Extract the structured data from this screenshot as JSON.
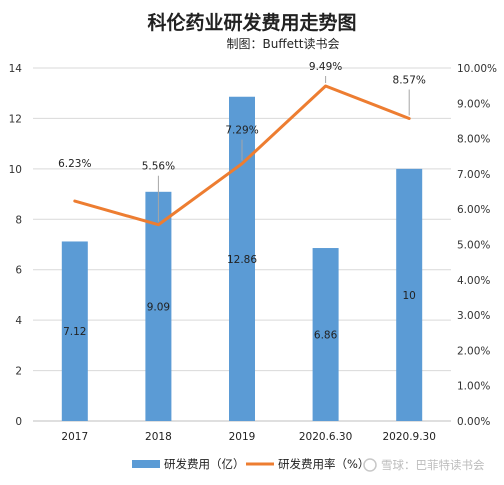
{
  "chart_data": {
    "type": "bar",
    "title": "科伦药业研发费用走势图",
    "subtitle": "制图：Buffett读书会",
    "categories": [
      "2017",
      "2018",
      "2019",
      "2020.6.30",
      "2020.9.30"
    ],
    "series": [
      {
        "name": "研发费用（亿）",
        "type": "bar",
        "axis": "left",
        "color": "#5b9bd5",
        "values": [
          7.12,
          9.09,
          12.86,
          6.86,
          10
        ],
        "labels": [
          "7.12",
          "9.09",
          "12.86",
          "6.86",
          "10"
        ]
      },
      {
        "name": "研发费用率（%）",
        "type": "line",
        "axis": "right",
        "color": "#ed7d31",
        "values": [
          6.23,
          5.56,
          7.29,
          9.49,
          8.57
        ],
        "labels": [
          "6.23%",
          "5.56%",
          "7.29%",
          "9.49%",
          "8.57%"
        ]
      }
    ],
    "y_left": {
      "ylim": [
        0,
        14
      ],
      "ticks": [
        "0",
        "2",
        "4",
        "6",
        "8",
        "10",
        "12",
        "14"
      ]
    },
    "y_right": {
      "ylim": [
        0,
        10
      ],
      "ticks": [
        "0.00%",
        "1.00%",
        "2.00%",
        "3.00%",
        "4.00%",
        "5.00%",
        "6.00%",
        "7.00%",
        "8.00%",
        "9.00%",
        "10.00%"
      ]
    },
    "grid": true,
    "legend": "bottom",
    "watermark": "雪球：巴菲特读书会"
  }
}
